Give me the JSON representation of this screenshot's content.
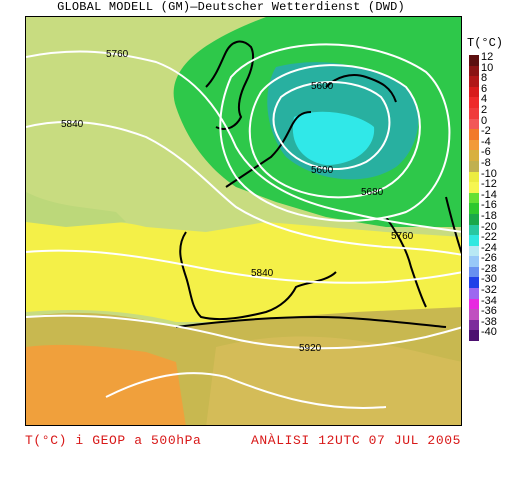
{
  "header": {
    "title": "GLOBAL MODELL (GM)—Deutscher Wetterdienst (DWD)"
  },
  "legend": {
    "title": "T(°C)",
    "items": [
      {
        "label": "12",
        "color": "#5c0f0f"
      },
      {
        "label": "10",
        "color": "#8a1414"
      },
      {
        "label": "8",
        "color": "#b01818"
      },
      {
        "label": "6",
        "color": "#d81c1c"
      },
      {
        "label": "4",
        "color": "#ee2a2a"
      },
      {
        "label": "2",
        "color": "#f03c3c"
      },
      {
        "label": "0",
        "color": "#f25858"
      },
      {
        "label": "-2",
        "color": "#f27a2a"
      },
      {
        "label": "-4",
        "color": "#f29a3a"
      },
      {
        "label": "-6",
        "color": "#d8b040"
      },
      {
        "label": "-8",
        "color": "#c0b050"
      },
      {
        "label": "-10",
        "color": "#ecec40"
      },
      {
        "label": "-12",
        "color": "#f6f650"
      },
      {
        "label": "-14",
        "color": "#66e034"
      },
      {
        "label": "-16",
        "color": "#2ec82e"
      },
      {
        "label": "-18",
        "color": "#1aa84a"
      },
      {
        "label": "-20",
        "color": "#28c8a0"
      },
      {
        "label": "-22",
        "color": "#30e8e0"
      },
      {
        "label": "-24",
        "color": "#b8e8f4"
      },
      {
        "label": "-26",
        "color": "#98c8f8"
      },
      {
        "label": "-28",
        "color": "#6890f0"
      },
      {
        "label": "-30",
        "color": "#2040e8"
      },
      {
        "label": "-32",
        "color": "#9c68f0"
      },
      {
        "label": "-34",
        "color": "#e828e0"
      },
      {
        "label": "-36",
        "color": "#c050c0"
      },
      {
        "label": "-38",
        "color": "#7c2c9c"
      },
      {
        "label": "-40",
        "color": "#4c1070"
      }
    ]
  },
  "contours": [
    {
      "label": "5760"
    },
    {
      "label": "5840"
    },
    {
      "label": "5600"
    },
    {
      "label": "5600"
    },
    {
      "label": "5680"
    },
    {
      "label": "5760"
    },
    {
      "label": "5840"
    },
    {
      "label": "5920"
    }
  ],
  "footer": {
    "variable": "T(°C) i GEOP a 500hPa",
    "analysis": "ANÀLISI 12UTC 07 JUL 2005"
  }
}
